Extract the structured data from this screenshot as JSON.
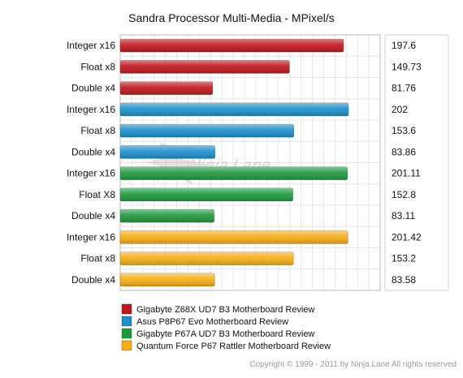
{
  "chart_data": {
    "type": "bar",
    "orientation": "horizontal",
    "title": "Sandra Processor Multi-Media - MPixel/s",
    "xlim": [
      0,
      230
    ],
    "grid": true,
    "legend_placement": "bottom-left",
    "categories": [
      "Integer x16",
      "Float x8",
      "Double x4",
      "Integer x16",
      "Float x8",
      "Double x4",
      "Integer x16",
      "Float X8",
      "Double x4",
      "Integer x16",
      "Float x8",
      "Double x4"
    ],
    "bars": [
      {
        "label": "Integer x16",
        "value": 197.6,
        "value_text": "197.6",
        "series": 0
      },
      {
        "label": "Float x8",
        "value": 149.73,
        "value_text": "149.73",
        "series": 0
      },
      {
        "label": "Double x4",
        "value": 81.76,
        "value_text": "81.76",
        "series": 0
      },
      {
        "label": "Integer x16",
        "value": 202,
        "value_text": "202",
        "series": 1
      },
      {
        "label": "Float x8",
        "value": 153.6,
        "value_text": "153.6",
        "series": 1
      },
      {
        "label": "Double x4",
        "value": 83.86,
        "value_text": "83.86",
        "series": 1
      },
      {
        "label": "Integer x16",
        "value": 201.11,
        "value_text": "201.11",
        "series": 2
      },
      {
        "label": "Float X8",
        "value": 152.8,
        "value_text": "152.8",
        "series": 2
      },
      {
        "label": "Double x4",
        "value": 83.11,
        "value_text": "83.11",
        "series": 2
      },
      {
        "label": "Integer x16",
        "value": 201.42,
        "value_text": "201.42",
        "series": 3
      },
      {
        "label": "Float x8",
        "value": 153.2,
        "value_text": "153.2",
        "series": 3
      },
      {
        "label": "Double x4",
        "value": 83.58,
        "value_text": "83.58",
        "series": 3
      }
    ],
    "series": [
      {
        "name": "Gigabyte Z68X UD7 B3 Motherboard Review",
        "color": "#c0171c"
      },
      {
        "name": "Asus P8P67 Evo Motherboard Review",
        "color": "#1b8fcb"
      },
      {
        "name": "Gigabyte P67A UD7 B3 Motherboard Review",
        "color": "#1e9a3d"
      },
      {
        "name": "Quantum Force P67 Rattler Motherboard Review",
        "color": "#f7ad12"
      }
    ]
  },
  "footer": {
    "copyright": "Copyright © 1999 - 2011 by Ninja Lane All rights reserved"
  }
}
